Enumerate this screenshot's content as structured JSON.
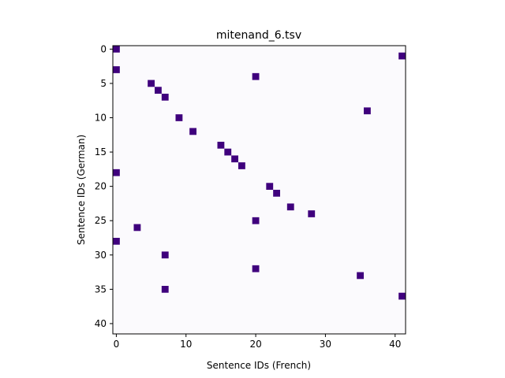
{
  "chart_data": {
    "type": "heatmap",
    "title": "mitenand_6.tsv",
    "xlabel": "Sentence IDs (French)",
    "ylabel": "Sentence IDs (German)",
    "x_ticks": [
      0,
      10,
      20,
      30,
      40
    ],
    "y_ticks": [
      0,
      5,
      10,
      15,
      20,
      25,
      30,
      35,
      40
    ],
    "xlim": [
      -0.5,
      41.5
    ],
    "ylim": [
      41.5,
      -0.5
    ],
    "y_inverted": true,
    "grid": false,
    "colors": {
      "background": "#fbfafd",
      "cell": "#3f007d",
      "frame": "#000000"
    },
    "points": [
      {
        "x": 0,
        "y": 0
      },
      {
        "x": 41,
        "y": 1
      },
      {
        "x": 0,
        "y": 3
      },
      {
        "x": 20,
        "y": 4
      },
      {
        "x": 5,
        "y": 5
      },
      {
        "x": 6,
        "y": 6
      },
      {
        "x": 7,
        "y": 7
      },
      {
        "x": 36,
        "y": 9
      },
      {
        "x": 9,
        "y": 10
      },
      {
        "x": 11,
        "y": 12
      },
      {
        "x": 15,
        "y": 14
      },
      {
        "x": 16,
        "y": 15
      },
      {
        "x": 17,
        "y": 16
      },
      {
        "x": 18,
        "y": 17
      },
      {
        "x": 0,
        "y": 18
      },
      {
        "x": 22,
        "y": 20
      },
      {
        "x": 23,
        "y": 21
      },
      {
        "x": 25,
        "y": 23
      },
      {
        "x": 28,
        "y": 24
      },
      {
        "x": 20,
        "y": 25
      },
      {
        "x": 3,
        "y": 26
      },
      {
        "x": 0,
        "y": 28
      },
      {
        "x": 7,
        "y": 30
      },
      {
        "x": 20,
        "y": 32
      },
      {
        "x": 35,
        "y": 33
      },
      {
        "x": 7,
        "y": 35
      },
      {
        "x": 41,
        "y": 36
      }
    ]
  }
}
